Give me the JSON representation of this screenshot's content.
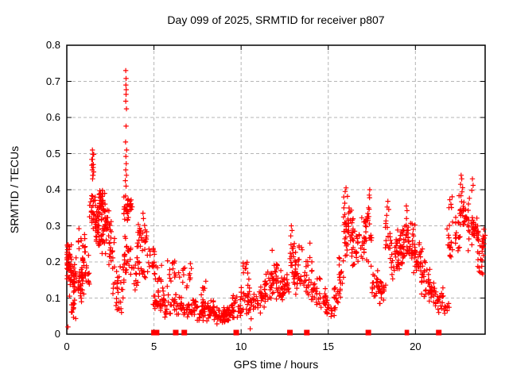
{
  "page": {
    "background": "#ffffff"
  },
  "chart_data": {
    "type": "scatter",
    "title": "Day 099 of 2025, SRMTID for receiver p807",
    "xlabel": "GPS time / hours",
    "ylabel": "SRMTID / TECUs",
    "xlim": [
      0,
      24
    ],
    "ylim": [
      0,
      0.8
    ],
    "xticks": [
      0,
      5,
      10,
      15,
      20
    ],
    "xtick_labels": [
      "0",
      "5",
      "10",
      "15",
      "20"
    ],
    "yticks": [
      0,
      0.1,
      0.2,
      0.3,
      0.4,
      0.5,
      0.6,
      0.7,
      0.8
    ],
    "ytick_labels": [
      "0",
      "0.1",
      "0.2",
      "0.3",
      "0.4",
      "0.5",
      "0.6",
      "0.7",
      "0.8"
    ],
    "grid": true,
    "legend": "none",
    "marker": "plus",
    "marker_color": "#ff0000",
    "grid_color": "#b5b5b5",
    "border_color": "#000000",
    "text_color": "#000000",
    "clusters": [
      {
        "x": [
          0.0,
          0.12
        ],
        "y": [
          0.19,
          0.27
        ],
        "n": 12
      },
      {
        "x": [
          0.0,
          0.45
        ],
        "y": [
          0.1,
          0.22
        ],
        "n": 40
      },
      {
        "x": [
          0.1,
          0.3
        ],
        "y": [
          0.2,
          0.26
        ],
        "n": 8
      },
      {
        "x": [
          0.25,
          0.55
        ],
        "y": [
          0.04,
          0.1
        ],
        "n": 14
      },
      {
        "x": [
          0.4,
          0.9
        ],
        "y": [
          0.08,
          0.2
        ],
        "n": 35
      },
      {
        "x": [
          0.5,
          1.1
        ],
        "y": [
          0.2,
          0.29
        ],
        "n": 14
      },
      {
        "x": [
          0.85,
          1.3
        ],
        "y": [
          0.1,
          0.24
        ],
        "n": 28
      },
      {
        "x": [
          1.3,
          1.55
        ],
        "y": [
          0.28,
          0.42
        ],
        "n": 14
      },
      {
        "x": [
          1.42,
          1.55
        ],
        "y": [
          0.43,
          0.51
        ],
        "n": 7
      },
      {
        "x": [
          1.5,
          1.8
        ],
        "y": [
          0.22,
          0.4
        ],
        "n": 30
      },
      {
        "x": [
          1.75,
          2.2
        ],
        "y": [
          0.3,
          0.41
        ],
        "n": 48
      },
      {
        "x": [
          1.8,
          2.3
        ],
        "y": [
          0.2,
          0.32
        ],
        "n": 30
      },
      {
        "x": [
          2.15,
          2.55
        ],
        "y": [
          0.24,
          0.35
        ],
        "n": 20
      },
      {
        "x": [
          2.4,
          2.75
        ],
        "y": [
          0.17,
          0.28
        ],
        "n": 16
      },
      {
        "x": [
          2.6,
          2.95
        ],
        "y": [
          0.09,
          0.19
        ],
        "n": 12
      },
      {
        "x": [
          2.8,
          3.15
        ],
        "y": [
          0.05,
          0.13
        ],
        "n": 12
      },
      {
        "x": [
          3.0,
          3.3
        ],
        "y": [
          0.08,
          0.2
        ],
        "n": 10
      },
      {
        "x": [
          3.25,
          3.55
        ],
        "y": [
          0.3,
          0.4
        ],
        "n": 26
      },
      {
        "x": [
          3.3,
          3.7
        ],
        "y": [
          0.15,
          0.3
        ],
        "n": 24
      },
      {
        "x": [
          3.5,
          3.75
        ],
        "y": [
          0.33,
          0.38
        ],
        "n": 12
      },
      {
        "x": [
          3.7,
          4.1
        ],
        "y": [
          0.1,
          0.26
        ],
        "n": 16
      },
      {
        "x": [
          4.05,
          4.6
        ],
        "y": [
          0.22,
          0.32
        ],
        "n": 26
      },
      {
        "x": [
          4.1,
          4.6
        ],
        "y": [
          0.14,
          0.22
        ],
        "n": 10
      },
      {
        "x": [
          4.6,
          5.05
        ],
        "y": [
          0.15,
          0.25
        ],
        "n": 18
      },
      {
        "x": [
          4.9,
          5.6
        ],
        "y": [
          0.05,
          0.12
        ],
        "n": 30
      },
      {
        "x": [
          5.0,
          5.55
        ],
        "y": [
          0.1,
          0.21
        ],
        "n": 14
      },
      {
        "x": [
          5.6,
          6.3
        ],
        "y": [
          0.04,
          0.12
        ],
        "n": 26
      },
      {
        "x": [
          5.75,
          6.3
        ],
        "y": [
          0.13,
          0.21
        ],
        "n": 14
      },
      {
        "x": [
          6.3,
          7.3
        ],
        "y": [
          0.04,
          0.11
        ],
        "n": 40
      },
      {
        "x": [
          6.65,
          7.2
        ],
        "y": [
          0.12,
          0.2
        ],
        "n": 13
      },
      {
        "x": [
          7.3,
          8.1
        ],
        "y": [
          0.03,
          0.1
        ],
        "n": 42
      },
      {
        "x": [
          7.7,
          8.05
        ],
        "y": [
          0.1,
          0.16
        ],
        "n": 6
      },
      {
        "x": [
          8.1,
          8.6
        ],
        "y": [
          0.03,
          0.1
        ],
        "n": 26
      },
      {
        "x": [
          8.5,
          9.2
        ],
        "y": [
          0.02,
          0.08
        ],
        "n": 36
      },
      {
        "x": [
          9.0,
          9.6
        ],
        "y": [
          0.03,
          0.09
        ],
        "n": 26
      },
      {
        "x": [
          9.5,
          10.0
        ],
        "y": [
          0.03,
          0.12
        ],
        "n": 22
      },
      {
        "x": [
          10.0,
          10.5
        ],
        "y": [
          0.05,
          0.15
        ],
        "n": 20
      },
      {
        "x": [
          10.1,
          10.45
        ],
        "y": [
          0.14,
          0.225
        ],
        "n": 10
      },
      {
        "x": [
          10.4,
          11.0
        ],
        "y": [
          0.04,
          0.12
        ],
        "n": 26
      },
      {
        "x": [
          11.0,
          11.45
        ],
        "y": [
          0.05,
          0.14
        ],
        "n": 22
      },
      {
        "x": [
          11.35,
          11.8
        ],
        "y": [
          0.08,
          0.18
        ],
        "n": 20
      },
      {
        "x": [
          11.7,
          12.1
        ],
        "y": [
          0.1,
          0.21
        ],
        "n": 22
      },
      {
        "x": [
          12.0,
          12.55
        ],
        "y": [
          0.08,
          0.19
        ],
        "n": 26
      },
      {
        "x": [
          12.45,
          12.8
        ],
        "y": [
          0.1,
          0.17
        ],
        "n": 16
      },
      {
        "x": [
          12.8,
          13.15
        ],
        "y": [
          0.13,
          0.3
        ],
        "n": 20
      },
      {
        "x": [
          13.0,
          13.5
        ],
        "y": [
          0.1,
          0.21
        ],
        "n": 26
      },
      {
        "x": [
          13.3,
          13.55
        ],
        "y": [
          0.22,
          0.28
        ],
        "n": 4
      },
      {
        "x": [
          13.5,
          14.1
        ],
        "y": [
          0.1,
          0.22
        ],
        "n": 24
      },
      {
        "x": [
          14.0,
          14.55
        ],
        "y": [
          0.07,
          0.17
        ],
        "n": 24
      },
      {
        "x": [
          14.5,
          14.95
        ],
        "y": [
          0.05,
          0.13
        ],
        "n": 18
      },
      {
        "x": [
          14.85,
          15.4
        ],
        "y": [
          0.04,
          0.1
        ],
        "n": 18
      },
      {
        "x": [
          15.3,
          15.7
        ],
        "y": [
          0.06,
          0.15
        ],
        "n": 14
      },
      {
        "x": [
          15.55,
          15.9
        ],
        "y": [
          0.1,
          0.25
        ],
        "n": 14
      },
      {
        "x": [
          15.85,
          16.15
        ],
        "y": [
          0.18,
          0.4
        ],
        "n": 26
      },
      {
        "x": [
          16.1,
          16.45
        ],
        "y": [
          0.22,
          0.37
        ],
        "n": 24
      },
      {
        "x": [
          16.35,
          16.9
        ],
        "y": [
          0.17,
          0.3
        ],
        "n": 22
      },
      {
        "x": [
          16.85,
          17.25
        ],
        "y": [
          0.19,
          0.33
        ],
        "n": 18
      },
      {
        "x": [
          17.1,
          17.3
        ],
        "y": [
          0.26,
          0.36
        ],
        "n": 8
      },
      {
        "x": [
          17.25,
          17.5
        ],
        "y": [
          0.15,
          0.4
        ],
        "n": 14
      },
      {
        "x": [
          17.5,
          18.05
        ],
        "y": [
          0.08,
          0.18
        ],
        "n": 28
      },
      {
        "x": [
          17.95,
          18.3
        ],
        "y": [
          0.08,
          0.15
        ],
        "n": 12
      },
      {
        "x": [
          18.25,
          18.55
        ],
        "y": [
          0.18,
          0.37
        ],
        "n": 16
      },
      {
        "x": [
          18.5,
          19.0
        ],
        "y": [
          0.15,
          0.28
        ],
        "n": 26
      },
      {
        "x": [
          18.9,
          19.3
        ],
        "y": [
          0.17,
          0.3
        ],
        "n": 26
      },
      {
        "x": [
          19.2,
          19.6
        ],
        "y": [
          0.19,
          0.34
        ],
        "n": 26
      },
      {
        "x": [
          19.55,
          20.0
        ],
        "y": [
          0.18,
          0.32
        ],
        "n": 30
      },
      {
        "x": [
          19.9,
          20.4
        ],
        "y": [
          0.15,
          0.27
        ],
        "n": 26
      },
      {
        "x": [
          20.3,
          20.85
        ],
        "y": [
          0.1,
          0.21
        ],
        "n": 28
      },
      {
        "x": [
          20.75,
          21.2
        ],
        "y": [
          0.08,
          0.16
        ],
        "n": 20
      },
      {
        "x": [
          21.1,
          21.6
        ],
        "y": [
          0.06,
          0.13
        ],
        "n": 16
      },
      {
        "x": [
          21.5,
          21.95
        ],
        "y": [
          0.05,
          0.1
        ],
        "n": 12
      },
      {
        "x": [
          21.8,
          22.2
        ],
        "y": [
          0.17,
          0.33
        ],
        "n": 16
      },
      {
        "x": [
          21.9,
          22.15
        ],
        "y": [
          0.33,
          0.39
        ],
        "n": 5
      },
      {
        "x": [
          22.25,
          22.6
        ],
        "y": [
          0.22,
          0.35
        ],
        "n": 16
      },
      {
        "x": [
          22.5,
          22.8
        ],
        "y": [
          0.3,
          0.42
        ],
        "n": 12
      },
      {
        "x": [
          22.7,
          23.1
        ],
        "y": [
          0.26,
          0.38
        ],
        "n": 18
      },
      {
        "x": [
          23.0,
          23.35
        ],
        "y": [
          0.2,
          0.4
        ],
        "n": 16
      },
      {
        "x": [
          23.3,
          23.65
        ],
        "y": [
          0.24,
          0.33
        ],
        "n": 22
      },
      {
        "x": [
          23.55,
          23.9
        ],
        "y": [
          0.14,
          0.26
        ],
        "n": 14
      },
      {
        "x": [
          23.8,
          24.0
        ],
        "y": [
          0.18,
          0.31
        ],
        "n": 12
      }
    ],
    "points": [
      [
        3.38,
        0.73
      ],
      [
        3.4,
        0.708
      ],
      [
        3.39,
        0.69
      ],
      [
        3.41,
        0.677
      ],
      [
        3.4,
        0.664
      ],
      [
        3.38,
        0.645
      ],
      [
        3.42,
        0.624
      ],
      [
        3.4,
        0.576
      ],
      [
        3.37,
        0.532
      ],
      [
        3.43,
        0.51
      ],
      [
        3.39,
        0.492
      ],
      [
        3.41,
        0.472
      ],
      [
        3.38,
        0.455
      ],
      [
        3.42,
        0.44
      ],
      [
        3.36,
        0.425
      ],
      [
        3.4,
        0.41
      ],
      [
        1.47,
        0.51
      ],
      [
        1.49,
        0.498
      ],
      [
        1.48,
        0.484
      ],
      [
        1.5,
        0.47
      ],
      [
        1.46,
        0.455
      ],
      [
        1.51,
        0.44
      ],
      [
        1.48,
        0.43
      ],
      [
        0.7,
        0.292
      ],
      [
        0.07,
        0.02
      ],
      [
        10.52,
        0.015
      ],
      [
        4.37,
        0.335
      ],
      [
        4.4,
        0.32
      ],
      [
        12.88,
        0.3
      ],
      [
        12.92,
        0.287
      ],
      [
        12.85,
        0.272
      ],
      [
        13.95,
        0.252
      ],
      [
        11.78,
        0.232
      ],
      [
        16.02,
        0.405
      ],
      [
        15.97,
        0.395
      ],
      [
        17.38,
        0.4
      ],
      [
        17.35,
        0.385
      ],
      [
        18.42,
        0.368
      ],
      [
        18.38,
        0.352
      ],
      [
        19.48,
        0.355
      ],
      [
        19.52,
        0.342
      ],
      [
        22.62,
        0.44
      ],
      [
        22.66,
        0.43
      ],
      [
        22.59,
        0.415
      ],
      [
        23.27,
        0.43
      ],
      [
        23.31,
        0.412
      ],
      [
        23.24,
        0.398
      ],
      [
        21.34,
        0.06
      ],
      [
        6.42,
        0.17
      ],
      [
        6.47,
        0.158
      ]
    ],
    "zero_markers": {
      "square_hours": [
        5.0,
        5.15,
        6.25,
        6.74,
        9.72,
        12.8,
        13.77,
        17.3,
        21.34
      ],
      "thin_hours": [
        19.45,
        19.57
      ]
    }
  }
}
